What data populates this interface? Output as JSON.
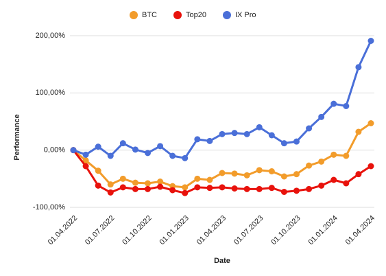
{
  "chart_data": {
    "type": "line",
    "x_label": "Date",
    "y_label": "Performance",
    "categories": [
      "01.04.2022",
      null,
      null,
      "01.07.2022",
      null,
      null,
      "01.10.2022",
      null,
      null,
      "01.01.2023",
      null,
      null,
      "01.04.2023",
      null,
      null,
      "01.07.2023",
      null,
      null,
      "01.10.2023",
      null,
      null,
      "01.01.2024",
      null,
      null,
      "01.04.2024"
    ],
    "series": [
      {
        "name": "BTC",
        "color": "#f29c2b",
        "values": [
          0,
          -18,
          -36,
          -60,
          -50,
          -57,
          -58,
          -55,
          -63,
          -65,
          -50,
          -52,
          -40,
          -41,
          -44,
          -35,
          -37,
          -46,
          -42,
          -27,
          -20,
          -8,
          -10,
          32,
          47
        ]
      },
      {
        "name": "Top20",
        "color": "#e8120c",
        "values": [
          0,
          -28,
          -62,
          -74,
          -65,
          -68,
          -68,
          -64,
          -70,
          -75,
          -65,
          -66,
          -65,
          -67,
          -68,
          -68,
          -66,
          -73,
          -71,
          -68,
          -62,
          -52,
          -58,
          -42,
          -28
        ]
      },
      {
        "name": "IX Pro",
        "color": "#4a6fd8",
        "values": [
          0,
          -8,
          6,
          -10,
          12,
          1,
          -5,
          7,
          -10,
          -14,
          19,
          16,
          28,
          30,
          28,
          40,
          26,
          12,
          15,
          38,
          58,
          81,
          77,
          145,
          191
        ]
      }
    ],
    "ylim": [
      -100,
      200
    ],
    "yticks": [
      {
        "value": -100,
        "label": "-100,00%"
      },
      {
        "value": 0,
        "label": "0,00%"
      },
      {
        "value": 100,
        "label": "100,00%"
      },
      {
        "value": 200,
        "label": "200,00%"
      }
    ],
    "grid": true,
    "legend": "top"
  }
}
